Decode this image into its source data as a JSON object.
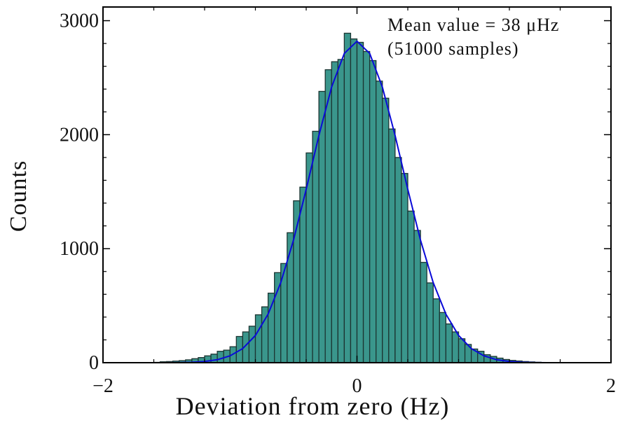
{
  "chart_data": {
    "type": "histogram",
    "xlabel": "Deviation from zero (Hz)",
    "ylabel": "Counts",
    "annotations": [
      "Mean value = 38 μHz",
      "(51000 samples)"
    ],
    "color": "#3a968c",
    "edgecolor": "#1c3532",
    "bins": [
      -1.6,
      -1.55,
      -1.5,
      -1.45,
      -1.4,
      -1.35,
      -1.3,
      -1.25,
      -1.2,
      -1.15,
      -1.1,
      -1.05,
      -1.0,
      -0.95,
      -0.9,
      -0.85,
      -0.8,
      -0.75,
      -0.7,
      -0.65,
      -0.6,
      -0.55,
      -0.5,
      -0.45,
      -0.4,
      -0.35,
      -0.3,
      -0.25,
      -0.2,
      -0.15,
      -0.1,
      -0.05,
      0,
      0.05,
      0.1,
      0.15,
      0.2,
      0.25,
      0.3,
      0.35,
      0.4,
      0.45,
      0.5,
      0.55,
      0.6,
      0.65,
      0.7,
      0.75,
      0.8,
      0.85,
      0.9,
      0.95,
      1.0,
      1.05,
      1.1,
      1.15,
      1.2,
      1.25,
      1.3,
      1.35,
      1.4,
      1.45
    ],
    "values": [
      3,
      8,
      10,
      14,
      18,
      25,
      35,
      45,
      60,
      75,
      100,
      110,
      140,
      230,
      270,
      320,
      420,
      490,
      610,
      790,
      870,
      1140,
      1420,
      1540,
      1840,
      2030,
      2380,
      2570,
      2640,
      2660,
      2890,
      2840,
      2810,
      2730,
      2650,
      2470,
      2320,
      2050,
      1800,
      1660,
      1330,
      1160,
      880,
      700,
      560,
      440,
      340,
      270,
      210,
      160,
      120,
      100,
      70,
      55,
      40,
      28,
      20,
      15,
      10,
      7,
      4
    ],
    "fit": {
      "color": "#0a0ad8",
      "x": [
        -2,
        -1.9,
        -1.8,
        -1.7,
        -1.6,
        -1.5,
        -1.4,
        -1.3,
        -1.2,
        -1.1,
        -1.0,
        -0.9,
        -0.8,
        -0.7,
        -0.6,
        -0.5,
        -0.4,
        -0.3,
        -0.2,
        -0.1,
        0,
        0.1,
        0.2,
        0.3,
        0.4,
        0.5,
        0.6,
        0.7,
        0.8,
        0.9,
        1.0,
        1.1,
        1.2,
        1.3,
        1.4,
        1.5,
        1.6,
        1.7,
        1.8,
        1.9,
        2
      ],
      "values": [
        0,
        0,
        0,
        0,
        0,
        0,
        1,
        4,
        11,
        26,
        60,
        124,
        239,
        426,
        703,
        1075,
        1521,
        1993,
        2417,
        2713,
        2820,
        2713,
        2417,
        1993,
        1521,
        1075,
        703,
        426,
        239,
        124,
        60,
        26,
        11,
        4,
        1,
        0,
        0,
        0,
        0,
        0,
        0
      ]
    },
    "xlim": [
      -2,
      2
    ],
    "ylim": [
      0,
      3120
    ],
    "xticks": [
      {
        "value": -2,
        "label": "−2"
      },
      0,
      2
    ],
    "xminorticks": [
      -1.6,
      -1.2,
      -0.8,
      -0.4,
      0.4,
      0.8,
      1.2,
      1.6
    ],
    "yticks": [
      0,
      1000,
      2000,
      3000
    ],
    "yminorticks": [
      200,
      400,
      600,
      800,
      1200,
      1400,
      1600,
      1800,
      2200,
      2400,
      2600,
      2800
    ]
  }
}
